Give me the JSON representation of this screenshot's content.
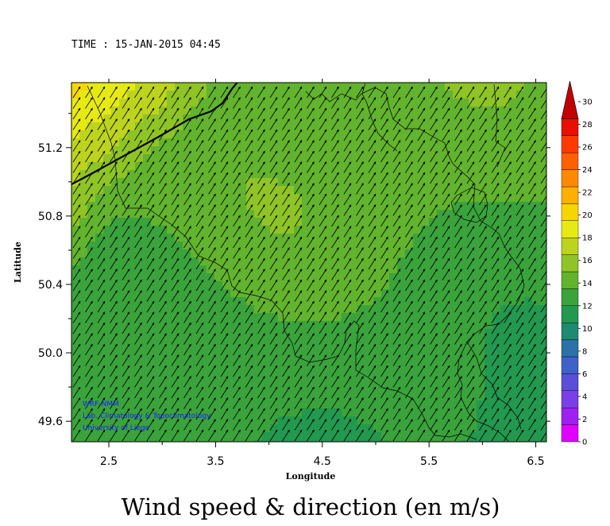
{
  "header": {
    "time_text": "TIME : 15-JAN-2015 04:45"
  },
  "map": {
    "title": "Wind speed & direction (en m/s)",
    "xlabel": "Longitude",
    "ylabel": "Latitude",
    "xlim": [
      2.15,
      6.6
    ],
    "ylim": [
      49.48,
      51.58
    ],
    "x_ticks": [
      "2.5",
      "3.5",
      "4.5",
      "5.5",
      "6.5"
    ],
    "x_tick_values": [
      2.5,
      3.5,
      4.5,
      5.5,
      6.5
    ],
    "y_ticks": [
      "51.2",
      "50.8",
      "50.4",
      "50.0",
      "49.6"
    ],
    "y_tick_values": [
      51.2,
      50.8,
      50.4,
      50.0,
      49.6
    ],
    "wind_direction": "from south-west",
    "credits": [
      "WRF-NMM",
      "Lab. Climatology & Topoclimatology",
      "University of Liege"
    ]
  },
  "colorbar": {
    "unit": "m/s",
    "ticks": [
      "0",
      "2",
      "4",
      "6",
      "8",
      "10",
      "12",
      "14",
      "16",
      "18",
      "20",
      "22",
      "24",
      "26",
      "28",
      "30"
    ],
    "colors": [
      "#e000ff",
      "#a020f0",
      "#7a3fe6",
      "#5a4fd8",
      "#3f62c8",
      "#2a72a8",
      "#1e8a72",
      "#23984f",
      "#3aa33c",
      "#62b32e",
      "#8ec425",
      "#bcd41d",
      "#e6ea12",
      "#f6d600",
      "#ffb000",
      "#ff8a00",
      "#ff6000",
      "#ff3a00",
      "#e81000",
      "#c00000"
    ]
  }
}
